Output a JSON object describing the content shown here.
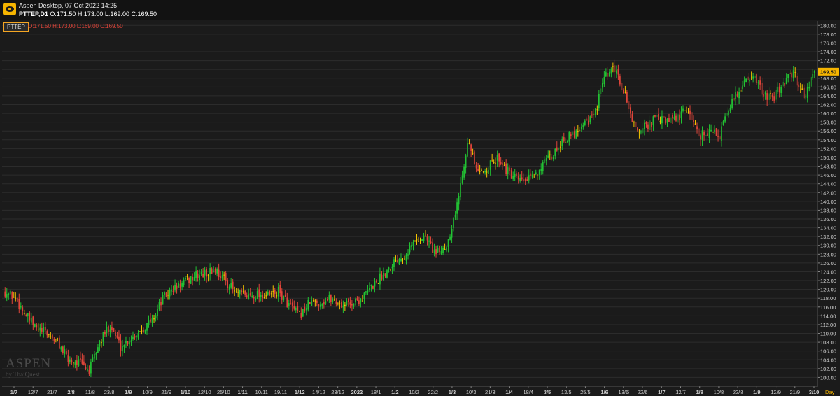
{
  "window": {
    "title": "Aspen Desktop, 07 Oct 2022 14:25",
    "symbol_line": "PTTEP,D1",
    "ohlc_line": "O:171.50 H:173.00 L:169.00 C:169.50"
  },
  "legend": {
    "symbol": "PTTEP",
    "ohlc": "O:171.50 H:173.00 L:169.00 C:169.50"
  },
  "watermark": {
    "brand": "ASPEN",
    "by": "by ThaiQuest"
  },
  "colors": {
    "up": "#22c233",
    "down": "#e0453a",
    "doji": "#f5c400",
    "price_tag": "#f5b400"
  },
  "icons": {
    "app": "aspen-logo-icon"
  },
  "chart_data": {
    "type": "candlestick",
    "symbol": "PTTEP",
    "timeframe": "D1",
    "ylim": [
      98,
      181
    ],
    "y_ticks": [
      "100.00",
      "102.00",
      "104.00",
      "106.00",
      "108.00",
      "110.00",
      "112.00",
      "114.00",
      "116.00",
      "118.00",
      "120.00",
      "122.00",
      "124.00",
      "126.00",
      "128.00",
      "130.00",
      "132.00",
      "134.00",
      "136.00",
      "138.00",
      "140.00",
      "142.00",
      "144.00",
      "146.00",
      "148.00",
      "150.00",
      "152.00",
      "154.00",
      "156.00",
      "158.00",
      "160.00",
      "162.00",
      "164.00",
      "166.00",
      "168.00",
      "170.00",
      "172.00",
      "174.00",
      "176.00",
      "178.00",
      "180.00"
    ],
    "x_ticks": [
      "1/7",
      "12/7",
      "21/7",
      "2/8",
      "11/8",
      "23/8",
      "1/9",
      "10/9",
      "21/9",
      "1/10",
      "12/10",
      "25/10",
      "1/11",
      "10/11",
      "19/11",
      "1/12",
      "14/12",
      "23/12",
      "2022",
      "18/1",
      "1/2",
      "10/2",
      "22/2",
      "1/3",
      "10/3",
      "21/3",
      "1/4",
      "18/4",
      "3/5",
      "13/5",
      "25/5",
      "1/6",
      "13/6",
      "22/6",
      "1/7",
      "12/7",
      "1/8",
      "10/8",
      "22/8",
      "1/9",
      "12/9",
      "21/9",
      "3/10"
    ],
    "bold_ticks": [
      "1/7",
      "2/8",
      "1/9",
      "1/10",
      "1/11",
      "1/12",
      "2022",
      "1/2",
      "1/3",
      "1/4",
      "3/5",
      "1/6",
      "1/7",
      "1/8",
      "1/9",
      "3/10"
    ],
    "period_label": "Day",
    "last_price": "169.50",
    "close_path": [
      [
        0,
        119.5
      ],
      [
        6,
        118
      ],
      [
        12,
        114
      ],
      [
        18,
        111
      ],
      [
        24,
        110
      ],
      [
        30,
        108
      ],
      [
        36,
        104
      ],
      [
        42,
        103.5
      ],
      [
        48,
        101.5
      ],
      [
        54,
        108
      ],
      [
        60,
        112
      ],
      [
        66,
        107
      ],
      [
        72,
        109
      ],
      [
        78,
        111
      ],
      [
        84,
        113
      ],
      [
        90,
        118
      ],
      [
        96,
        120
      ],
      [
        102,
        121.5
      ],
      [
        108,
        123
      ],
      [
        114,
        123.5
      ],
      [
        120,
        124.5
      ],
      [
        126,
        122
      ],
      [
        132,
        119
      ],
      [
        138,
        118.5
      ],
      [
        144,
        119
      ],
      [
        150,
        118.5
      ],
      [
        156,
        119.5
      ],
      [
        162,
        116.5
      ],
      [
        168,
        114
      ],
      [
        174,
        117
      ],
      [
        180,
        117
      ],
      [
        186,
        118
      ],
      [
        192,
        116.5
      ],
      [
        198,
        117
      ],
      [
        204,
        118
      ],
      [
        210,
        121
      ],
      [
        216,
        123.5
      ],
      [
        222,
        126.5
      ],
      [
        228,
        128
      ],
      [
        234,
        131
      ],
      [
        240,
        132
      ],
      [
        246,
        128
      ],
      [
        252,
        130
      ],
      [
        258,
        139
      ],
      [
        264,
        154
      ],
      [
        270,
        146
      ],
      [
        276,
        148
      ],
      [
        282,
        150
      ],
      [
        288,
        146
      ],
      [
        294,
        144.5
      ],
      [
        300,
        145
      ],
      [
        306,
        148
      ],
      [
        312,
        150
      ],
      [
        318,
        154
      ],
      [
        324,
        155
      ],
      [
        330,
        158
      ],
      [
        336,
        159
      ],
      [
        342,
        168
      ],
      [
        348,
        170
      ],
      [
        354,
        164
      ],
      [
        360,
        156
      ],
      [
        366,
        157
      ],
      [
        372,
        159
      ],
      [
        378,
        158
      ],
      [
        384,
        159
      ],
      [
        390,
        161
      ],
      [
        396,
        155
      ],
      [
        402,
        156
      ],
      [
        408,
        155
      ],
      [
        414,
        162
      ],
      [
        420,
        166
      ],
      [
        426,
        169
      ],
      [
        432,
        165
      ],
      [
        438,
        163
      ],
      [
        444,
        167
      ],
      [
        450,
        169
      ],
      [
        456,
        164
      ],
      [
        462,
        169.5
      ]
    ]
  }
}
